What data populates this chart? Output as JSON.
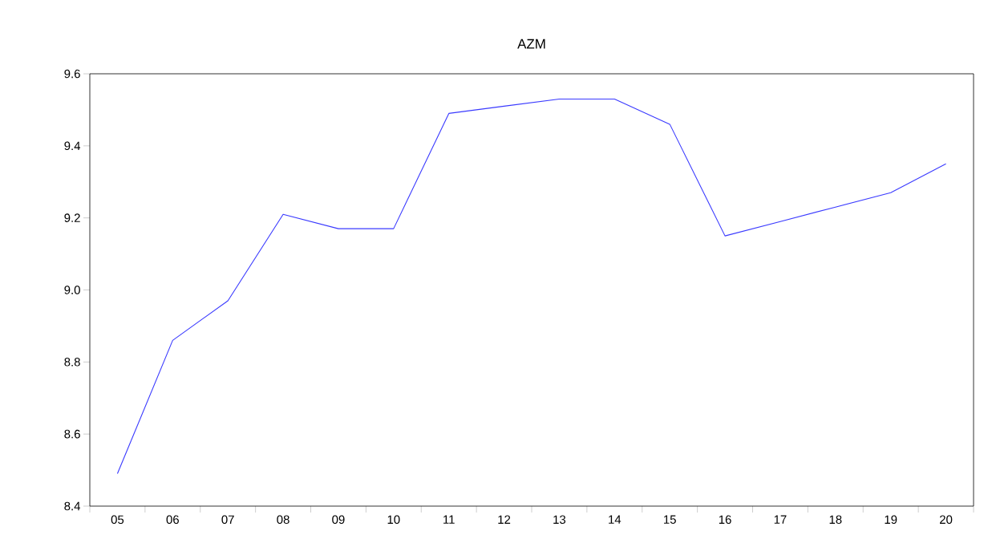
{
  "chart_data": {
    "type": "line",
    "title": "AZM",
    "categories": [
      "05",
      "06",
      "07",
      "08",
      "09",
      "10",
      "11",
      "12",
      "13",
      "14",
      "15",
      "16",
      "17",
      "18",
      "19",
      "20"
    ],
    "series": [
      {
        "color": "#3a3aff",
        "values": [
          8.49,
          8.86,
          8.97,
          9.21,
          9.17,
          9.17,
          9.49,
          9.51,
          9.53,
          9.53,
          9.46,
          9.15,
          9.19,
          9.23,
          9.27,
          9.35
        ]
      }
    ],
    "ylim": [
      8.4,
      9.6
    ],
    "yticks": [
      {
        "value": 8.4,
        "label": "8.4"
      },
      {
        "value": 8.6,
        "label": "8.6"
      },
      {
        "value": 8.8,
        "label": "8.8"
      },
      {
        "value": 9.0,
        "label": "9.0"
      },
      {
        "value": 9.2,
        "label": "9.2"
      },
      {
        "value": 9.4,
        "label": "9.4"
      },
      {
        "value": 9.6,
        "label": "9.6"
      }
    ],
    "grid": false,
    "marker": "none",
    "line_style": "solid"
  }
}
